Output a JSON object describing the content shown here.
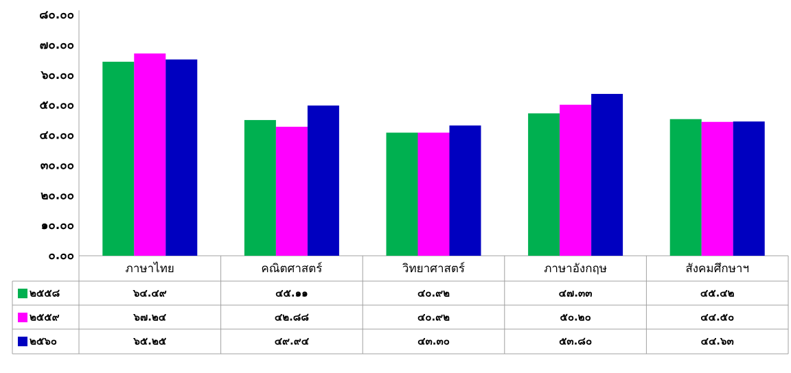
{
  "chart_data": {
    "type": "bar",
    "categories": [
      "ภาษาไทย",
      "คณิตศาสตร์",
      "วิทยาศาสตร์",
      "ภาษาอังกฤษ",
      "สังคมศึกษาฯ"
    ],
    "series": [
      {
        "name": "๒๕๕๘",
        "color": "#00b050",
        "values": [
          64.49,
          45.11,
          40.92,
          47.33,
          45.42
        ],
        "value_labels": [
          "๖๔.๔๙",
          "๔๕.๑๑",
          "๔๐.๙๒",
          "๔๗.๓๓",
          "๔๕.๔๒"
        ]
      },
      {
        "name": "๒๕๕๙",
        "color": "#ff00ff",
        "values": [
          67.24,
          42.88,
          40.92,
          50.2,
          44.5
        ],
        "value_labels": [
          "๖๗.๒๔",
          "๔๒.๘๘",
          "๔๐.๙๒",
          "๕๐.๒๐",
          "๔๔.๕๐"
        ]
      },
      {
        "name": "๒๕๖๐",
        "color": "#0000c0",
        "values": [
          65.25,
          49.94,
          43.3,
          53.8,
          44.63
        ],
        "value_labels": [
          "๖๕.๒๕",
          "๔๙.๙๔",
          "๔๓.๓๐",
          "๕๓.๘๐",
          "๔๔.๖๓"
        ]
      }
    ],
    "ylim": [
      0,
      80
    ],
    "yticks": [
      {
        "value": 0,
        "label": "๐.๐๐"
      },
      {
        "value": 10,
        "label": "๑๐.๐๐"
      },
      {
        "value": 20,
        "label": "๒๐.๐๐"
      },
      {
        "value": 30,
        "label": "๓๐.๐๐"
      },
      {
        "value": 40,
        "label": "๔๐.๐๐"
      },
      {
        "value": 50,
        "label": "๕๐.๐๐"
      },
      {
        "value": 60,
        "label": "๖๐.๐๐"
      },
      {
        "value": 70,
        "label": "๗๐.๐๐"
      },
      {
        "value": 80,
        "label": "๘๐.๐๐"
      }
    ],
    "grid": false,
    "legend": "table"
  }
}
